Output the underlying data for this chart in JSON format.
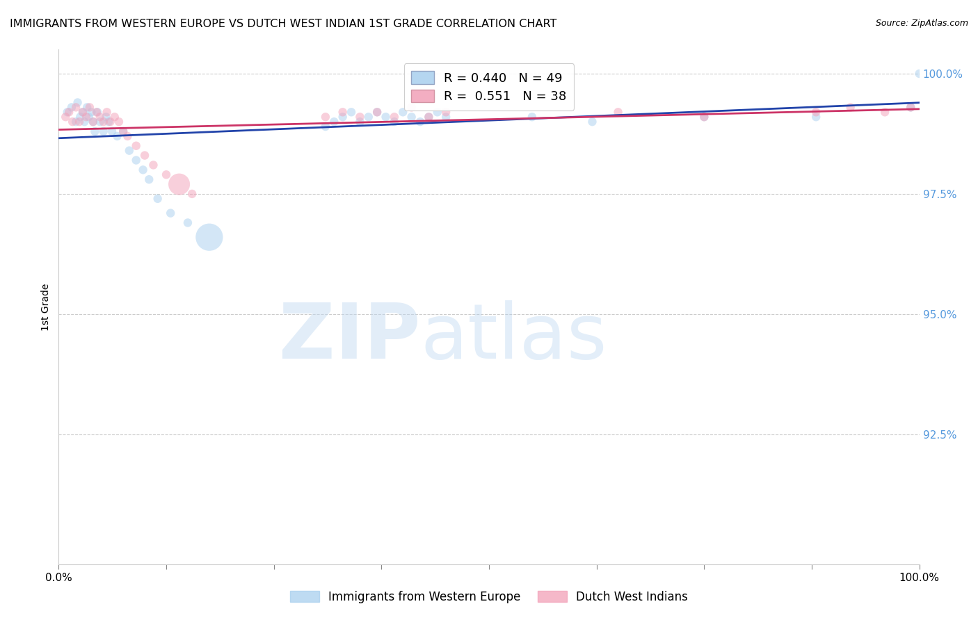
{
  "title": "IMMIGRANTS FROM WESTERN EUROPE VS DUTCH WEST INDIAN 1ST GRADE CORRELATION CHART",
  "source": "Source: ZipAtlas.com",
  "ylabel": "1st Grade",
  "xlim": [
    0.0,
    1.0
  ],
  "ylim": [
    0.898,
    1.005
  ],
  "yticks": [
    0.925,
    0.95,
    0.975,
    1.0
  ],
  "ytick_labels": [
    "92.5%",
    "95.0%",
    "97.5%",
    "100.0%"
  ],
  "xticks": [
    0.0,
    0.125,
    0.25,
    0.375,
    0.5,
    0.625,
    0.75,
    0.875,
    1.0
  ],
  "xtick_labels": [
    "0.0%",
    "",
    "",
    "",
    "",
    "",
    "",
    "",
    "100.0%"
  ],
  "blue_color": "#A8CFEE",
  "pink_color": "#F2A0B8",
  "blue_line_color": "#2244AA",
  "pink_line_color": "#CC3366",
  "R_blue": 0.44,
  "N_blue": 49,
  "R_pink": 0.551,
  "N_pink": 38,
  "watermark_zip": "ZIP",
  "watermark_atlas": "atlas",
  "blue_x": [
    0.01,
    0.015,
    0.02,
    0.022,
    0.025,
    0.028,
    0.03,
    0.033,
    0.035,
    0.038,
    0.04,
    0.042,
    0.045,
    0.048,
    0.052,
    0.055,
    0.058,
    0.062,
    0.068,
    0.075,
    0.082,
    0.09,
    0.098,
    0.105,
    0.115,
    0.13,
    0.15,
    0.175,
    0.31,
    0.32,
    0.33,
    0.34,
    0.35,
    0.36,
    0.37,
    0.38,
    0.39,
    0.4,
    0.41,
    0.42,
    0.43,
    0.44,
    0.45,
    0.55,
    0.62,
    0.75,
    0.88,
    0.99,
    1.0
  ],
  "blue_y": [
    0.992,
    0.993,
    0.99,
    0.994,
    0.991,
    0.992,
    0.99,
    0.993,
    0.991,
    0.992,
    0.99,
    0.988,
    0.992,
    0.99,
    0.988,
    0.991,
    0.99,
    0.988,
    0.987,
    0.988,
    0.984,
    0.982,
    0.98,
    0.978,
    0.974,
    0.971,
    0.969,
    0.966,
    0.989,
    0.99,
    0.991,
    0.992,
    0.99,
    0.991,
    0.992,
    0.991,
    0.99,
    0.992,
    0.991,
    0.99,
    0.991,
    0.992,
    0.991,
    0.991,
    0.99,
    0.991,
    0.991,
    0.993,
    1.0
  ],
  "blue_sizes": [
    80,
    80,
    80,
    80,
    80,
    80,
    80,
    80,
    80,
    80,
    80,
    80,
    80,
    80,
    80,
    80,
    80,
    80,
    80,
    80,
    80,
    80,
    80,
    80,
    80,
    80,
    80,
    80,
    80,
    80,
    80,
    80,
    80,
    80,
    80,
    80,
    80,
    80,
    80,
    80,
    80,
    80,
    80,
    80,
    80,
    80,
    80,
    80,
    80
  ],
  "blue_big_idx": [
    27
  ],
  "blue_big_size": 800,
  "pink_x": [
    0.008,
    0.012,
    0.016,
    0.02,
    0.024,
    0.028,
    0.032,
    0.036,
    0.04,
    0.044,
    0.048,
    0.052,
    0.056,
    0.06,
    0.065,
    0.07,
    0.075,
    0.08,
    0.09,
    0.1,
    0.11,
    0.125,
    0.14,
    0.155,
    0.31,
    0.33,
    0.35,
    0.37,
    0.39,
    0.41,
    0.43,
    0.45,
    0.65,
    0.75,
    0.88,
    0.92,
    0.96,
    0.99
  ],
  "pink_y": [
    0.991,
    0.992,
    0.99,
    0.993,
    0.99,
    0.992,
    0.991,
    0.993,
    0.99,
    0.992,
    0.991,
    0.99,
    0.992,
    0.99,
    0.991,
    0.99,
    0.988,
    0.987,
    0.985,
    0.983,
    0.981,
    0.979,
    0.977,
    0.975,
    0.991,
    0.992,
    0.991,
    0.992,
    0.991,
    0.993,
    0.991,
    0.992,
    0.992,
    0.991,
    0.992,
    0.993,
    0.992,
    0.993
  ],
  "pink_sizes": [
    80,
    80,
    80,
    80,
    80,
    80,
    80,
    80,
    80,
    80,
    80,
    80,
    80,
    80,
    80,
    80,
    80,
    80,
    80,
    80,
    80,
    80,
    80,
    80,
    80,
    80,
    80,
    80,
    80,
    80,
    80,
    80,
    80,
    80,
    80,
    80,
    80,
    80
  ],
  "pink_big_idx": [
    22
  ],
  "pink_big_size": 500
}
